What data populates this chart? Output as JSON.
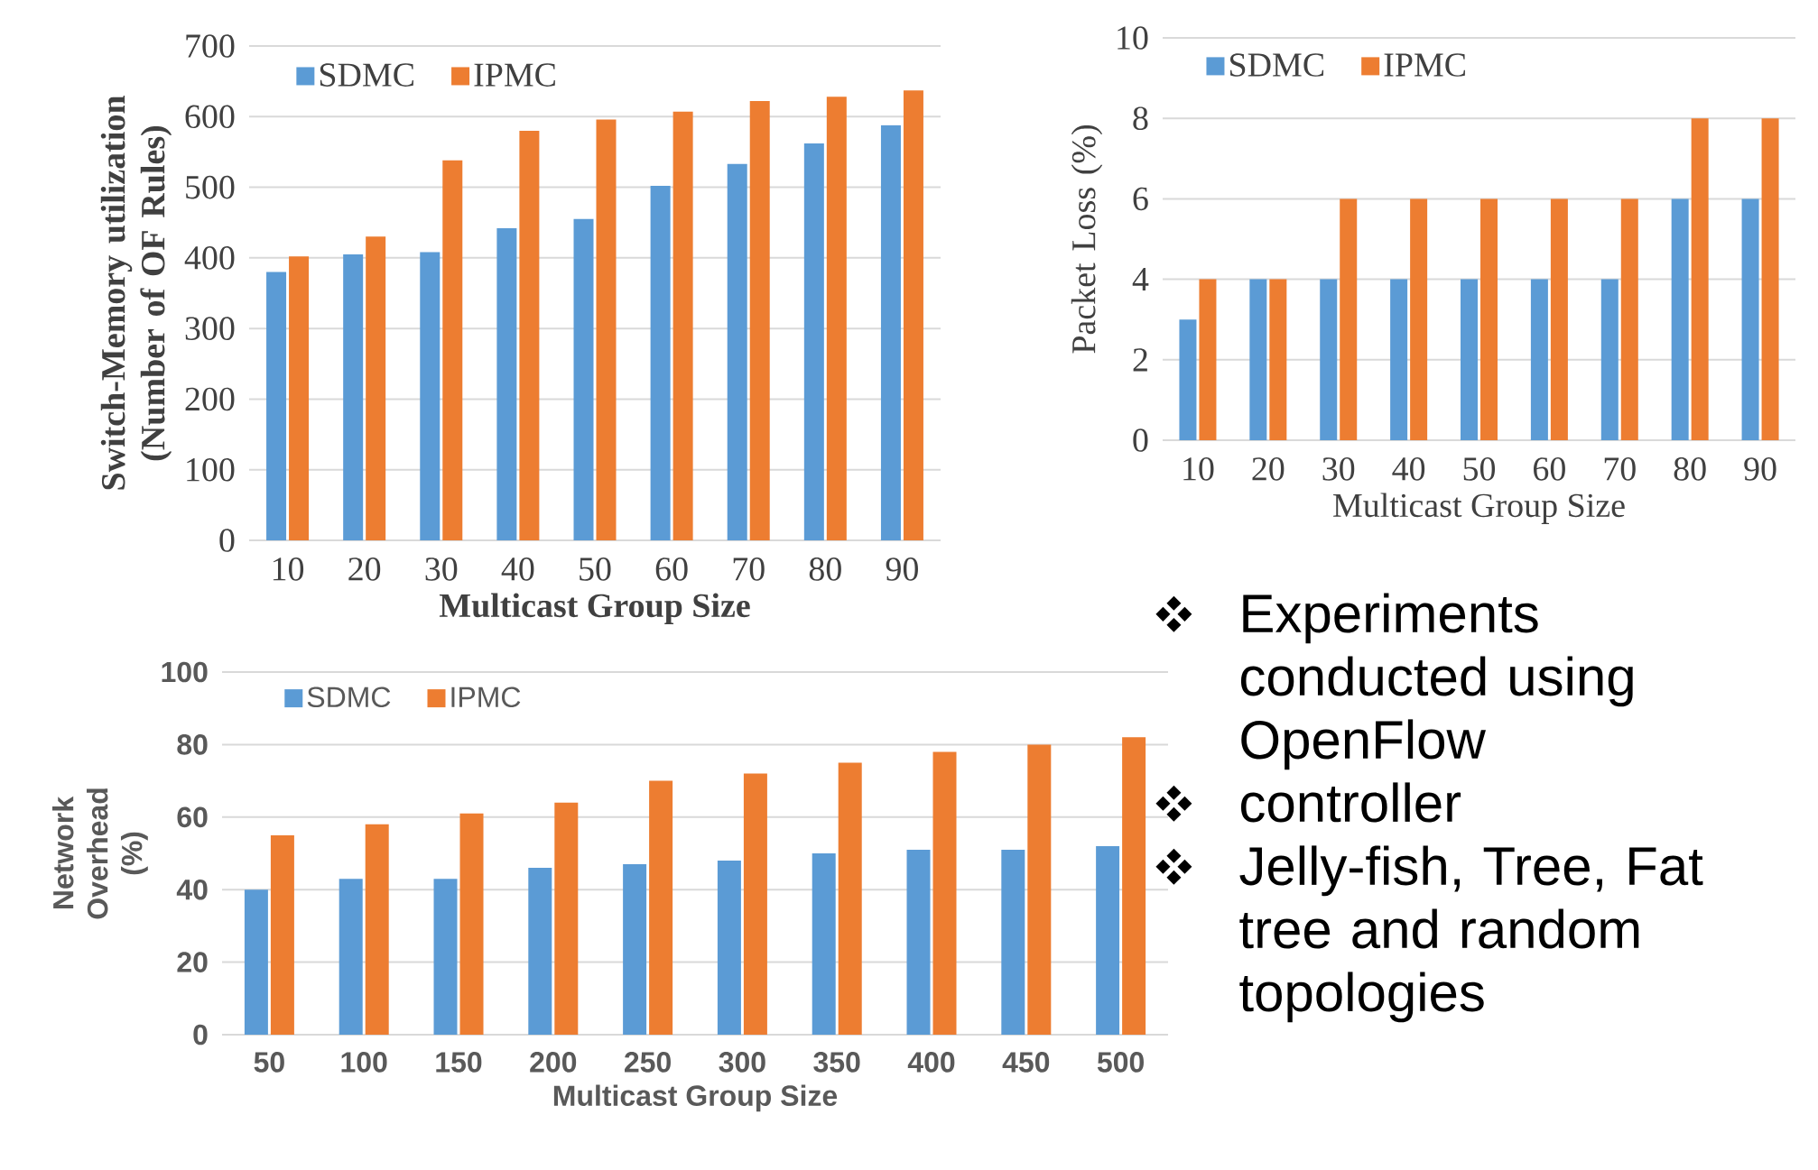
{
  "chart_data": [
    {
      "type": "bar",
      "categories": [
        "10",
        "20",
        "30",
        "40",
        "50",
        "60",
        "70",
        "80",
        "90"
      ],
      "xlabel": "Multicast Group Size",
      "ylabel": "Switch-Memory utilization (Number of OF Rules)",
      "ylim": [
        0,
        700
      ],
      "yticks": [
        0,
        100,
        200,
        300,
        400,
        500,
        600,
        700
      ],
      "grid": "y",
      "legend": "top left",
      "series": [
        {
          "name": "SDMC",
          "color": "#5b9bd5",
          "values": [
            380,
            405,
            408,
            442,
            455,
            502,
            533,
            562,
            588
          ]
        },
        {
          "name": "IPMC",
          "color": "#ed7d31",
          "values": [
            402,
            430,
            538,
            580,
            596,
            607,
            622,
            628,
            637
          ]
        }
      ]
    },
    {
      "type": "bar",
      "categories": [
        "10",
        "20",
        "30",
        "40",
        "50",
        "60",
        "70",
        "80",
        "90"
      ],
      "xlabel": "Multicast Group Size",
      "ylabel": "Packet Loss (%)",
      "ylim": [
        0,
        10
      ],
      "yticks": [
        0,
        2,
        4,
        6,
        8,
        10
      ],
      "grid": "y",
      "legend": "top left",
      "series": [
        {
          "name": "SDMC",
          "color": "#5b9bd5",
          "values": [
            3,
            4,
            4,
            4,
            4,
            4,
            4,
            6,
            6
          ]
        },
        {
          "name": "IPMC",
          "color": "#ed7d31",
          "values": [
            4,
            4,
            6,
            6,
            6,
            6,
            6,
            8,
            8
          ]
        }
      ]
    },
    {
      "type": "bar",
      "categories": [
        "50",
        "100",
        "150",
        "200",
        "250",
        "300",
        "350",
        "400",
        "450",
        "500"
      ],
      "xlabel": "Multicast Group Size",
      "ylabel": "Network Overhead (%)",
      "ylim": [
        0,
        100
      ],
      "yticks": [
        0,
        20,
        40,
        60,
        80,
        100
      ],
      "grid": "y",
      "legend": "top left",
      "series": [
        {
          "name": "SDMC",
          "color": "#5b9bd5",
          "values": [
            40,
            43,
            43,
            46,
            47,
            48,
            50,
            51,
            51,
            52
          ]
        },
        {
          "name": "IPMC",
          "color": "#ed7d31",
          "values": [
            55,
            58,
            61,
            64,
            70,
            72,
            75,
            78,
            80,
            82
          ]
        }
      ]
    },
    {
      "type": "other",
      "annotations": [
        "Experiments conducted using OpenFlow",
        "controller",
        "Jelly-fish, Tree, Fat tree and random topologies"
      ]
    }
  ]
}
